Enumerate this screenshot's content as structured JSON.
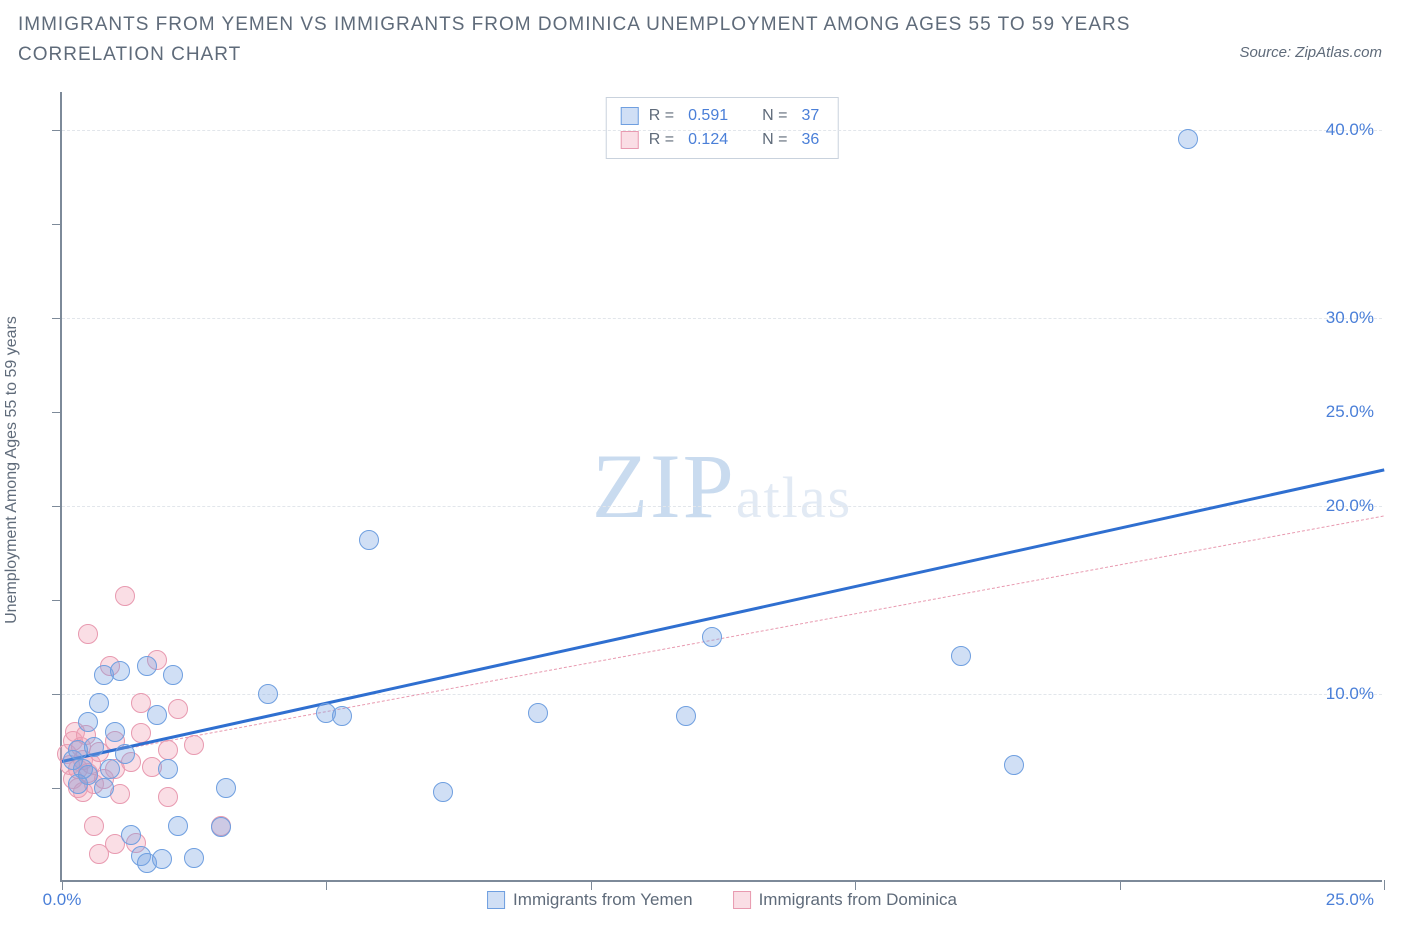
{
  "title": "IMMIGRANTS FROM YEMEN VS IMMIGRANTS FROM DOMINICA UNEMPLOYMENT AMONG AGES 55 TO 59 YEARS CORRELATION CHART",
  "source": "Source: ZipAtlas.com",
  "yaxis_label": "Unemployment Among Ages 55 to 59 years",
  "watermark_big": "ZIP",
  "watermark_small": "atlas",
  "chart": {
    "type": "scatter",
    "background_color": "#ffffff",
    "axis_color": "#7d8a99",
    "grid_color": "#e2e6eb",
    "text_color": "#5f6b7a",
    "value_color": "#4a7fd8",
    "title_fontsize": 19,
    "label_fontsize": 16,
    "tick_fontsize": 17,
    "point_radius": 10,
    "xlim": [
      0,
      25
    ],
    "ylim": [
      0,
      42
    ],
    "xticks": [
      0,
      5,
      10,
      15,
      20,
      25
    ],
    "yticks_grid": [
      10,
      20,
      30,
      40
    ],
    "y_labels": [
      {
        "v": 10,
        "t": "10.0%"
      },
      {
        "v": 20,
        "t": "20.0%"
      },
      {
        "v": 25,
        "t": "25.0%"
      },
      {
        "v": 30,
        "t": "30.0%"
      },
      {
        "v": 40,
        "t": "40.0%"
      }
    ],
    "x_label_min": "0.0%",
    "x_label_max": "25.0%",
    "series": [
      {
        "key": "yemen",
        "label": "Immigrants from Yemen",
        "fill": "rgba(120,163,225,0.35)",
        "stroke": "#6f9fe0",
        "trend": {
          "color": "#2f6fd0",
          "width": 3,
          "dash": "solid",
          "x1": 0,
          "y1": 6.5,
          "x2": 25,
          "y2": 22.0
        },
        "stats": {
          "R": "0.591",
          "N": "37"
        },
        "points": [
          {
            "x": 0.2,
            "y": 6.5
          },
          {
            "x": 0.3,
            "y": 7.0
          },
          {
            "x": 0.4,
            "y": 6.0
          },
          {
            "x": 0.5,
            "y": 5.7
          },
          {
            "x": 0.5,
            "y": 8.5
          },
          {
            "x": 0.6,
            "y": 7.2
          },
          {
            "x": 0.7,
            "y": 9.5
          },
          {
            "x": 0.8,
            "y": 11.0
          },
          {
            "x": 0.8,
            "y": 5.0
          },
          {
            "x": 0.9,
            "y": 6.0
          },
          {
            "x": 1.0,
            "y": 8.0
          },
          {
            "x": 1.1,
            "y": 11.2
          },
          {
            "x": 1.2,
            "y": 6.8
          },
          {
            "x": 1.3,
            "y": 2.5
          },
          {
            "x": 1.5,
            "y": 1.4
          },
          {
            "x": 1.6,
            "y": 11.5
          },
          {
            "x": 1.6,
            "y": 1.0
          },
          {
            "x": 1.8,
            "y": 8.9
          },
          {
            "x": 1.9,
            "y": 1.2
          },
          {
            "x": 2.0,
            "y": 6.0
          },
          {
            "x": 2.1,
            "y": 11.0
          },
          {
            "x": 2.2,
            "y": 3.0
          },
          {
            "x": 2.5,
            "y": 1.3
          },
          {
            "x": 3.0,
            "y": 2.9
          },
          {
            "x": 3.1,
            "y": 5.0
          },
          {
            "x": 3.9,
            "y": 10.0
          },
          {
            "x": 5.0,
            "y": 9.0
          },
          {
            "x": 5.3,
            "y": 8.8
          },
          {
            "x": 5.8,
            "y": 18.2
          },
          {
            "x": 7.2,
            "y": 4.8
          },
          {
            "x": 9.0,
            "y": 9.0
          },
          {
            "x": 11.8,
            "y": 8.8
          },
          {
            "x": 12.3,
            "y": 13.0
          },
          {
            "x": 17.0,
            "y": 12.0
          },
          {
            "x": 18.0,
            "y": 6.2
          },
          {
            "x": 21.3,
            "y": 39.5
          },
          {
            "x": 0.3,
            "y": 5.2
          }
        ]
      },
      {
        "key": "dominica",
        "label": "Immigrants from Dominica",
        "fill": "rgba(240,160,180,0.35)",
        "stroke": "#e89ab0",
        "trend": {
          "color": "#e89ab0",
          "width": 1.5,
          "dash": "6 5",
          "x1": 0,
          "y1": 6.5,
          "x2": 25,
          "y2": 19.5
        },
        "stats": {
          "R": "0.124",
          "N": "36"
        },
        "points": [
          {
            "x": 0.1,
            "y": 6.8
          },
          {
            "x": 0.15,
            "y": 6.2
          },
          {
            "x": 0.2,
            "y": 7.5
          },
          {
            "x": 0.2,
            "y": 5.5
          },
          {
            "x": 0.25,
            "y": 8.0
          },
          {
            "x": 0.3,
            "y": 6.0
          },
          {
            "x": 0.3,
            "y": 5.0
          },
          {
            "x": 0.35,
            "y": 7.2
          },
          {
            "x": 0.4,
            "y": 6.5
          },
          {
            "x": 0.4,
            "y": 4.8
          },
          {
            "x": 0.45,
            "y": 7.8
          },
          {
            "x": 0.5,
            "y": 5.8
          },
          {
            "x": 0.5,
            "y": 13.2
          },
          {
            "x": 0.55,
            "y": 6.3
          },
          {
            "x": 0.6,
            "y": 5.2
          },
          {
            "x": 0.6,
            "y": 3.0
          },
          {
            "x": 0.7,
            "y": 6.9
          },
          {
            "x": 0.7,
            "y": 1.5
          },
          {
            "x": 0.8,
            "y": 5.5
          },
          {
            "x": 0.9,
            "y": 11.5
          },
          {
            "x": 1.0,
            "y": 6.0
          },
          {
            "x": 1.0,
            "y": 2.0
          },
          {
            "x": 1.0,
            "y": 7.5
          },
          {
            "x": 1.1,
            "y": 4.7
          },
          {
            "x": 1.2,
            "y": 15.2
          },
          {
            "x": 1.3,
            "y": 6.4
          },
          {
            "x": 1.4,
            "y": 2.1
          },
          {
            "x": 1.5,
            "y": 7.9
          },
          {
            "x": 1.5,
            "y": 9.5
          },
          {
            "x": 1.7,
            "y": 6.1
          },
          {
            "x": 1.8,
            "y": 11.8
          },
          {
            "x": 2.0,
            "y": 7.0
          },
          {
            "x": 2.0,
            "y": 4.5
          },
          {
            "x": 2.2,
            "y": 9.2
          },
          {
            "x": 2.5,
            "y": 7.3
          },
          {
            "x": 3.0,
            "y": 3.0
          }
        ]
      }
    ]
  },
  "legend_top_prefix_R": "R = ",
  "legend_top_prefix_N": "N = "
}
